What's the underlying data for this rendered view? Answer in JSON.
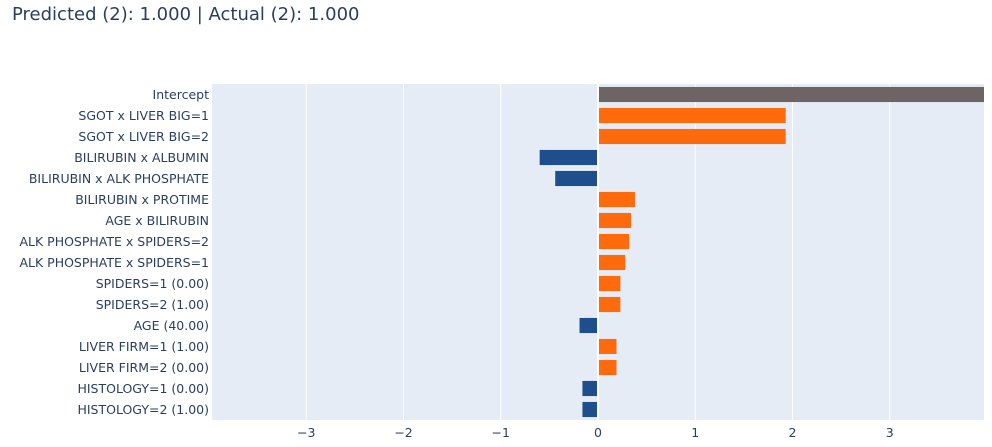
{
  "chart_data": {
    "type": "bar",
    "orientation": "horizontal",
    "title": "Predicted (2): 1.000 | Actual (2): 1.000",
    "xlabel": "",
    "ylabel": "",
    "xlim": [
      -3.97,
      3.97
    ],
    "xticks": [
      -3,
      -2,
      -1,
      0,
      1,
      2,
      3
    ],
    "xtick_labels": [
      "−3",
      "−2",
      "−1",
      "0",
      "1",
      "2",
      "3"
    ],
    "grid": true,
    "categories": [
      "Intercept",
      "SGOT x LIVER BIG=1",
      "SGOT x LIVER BIG=2",
      "BILIRUBIN x ALBUMIN",
      "BILIRUBIN x ALK PHOSPHATE",
      "BILIRUBIN x PROTIME",
      "AGE x BILIRUBIN",
      "ALK PHOSPHATE x SPIDERS=2",
      "ALK PHOSPHATE x SPIDERS=1",
      "SPIDERS=1 (0.00)",
      "SPIDERS=2 (1.00)",
      "AGE (40.00)",
      "LIVER FIRM=1 (1.00)",
      "LIVER FIRM=2 (0.00)",
      "HISTOLOGY=1 (0.00)",
      "HISTOLOGY=2 (1.00)"
    ],
    "values": [
      3.97,
      1.93,
      1.93,
      -0.6,
      -0.44,
      0.38,
      0.34,
      0.32,
      0.28,
      0.23,
      0.23,
      -0.19,
      0.19,
      0.19,
      -0.16,
      -0.16
    ],
    "colors": {
      "intercept": "#6e6464",
      "positive": "#ff6a0d",
      "negative": "#1f4e8c",
      "plot_background": "#e5ecf6",
      "grid": "#ffffff",
      "text": "#2a3f5f"
    }
  }
}
